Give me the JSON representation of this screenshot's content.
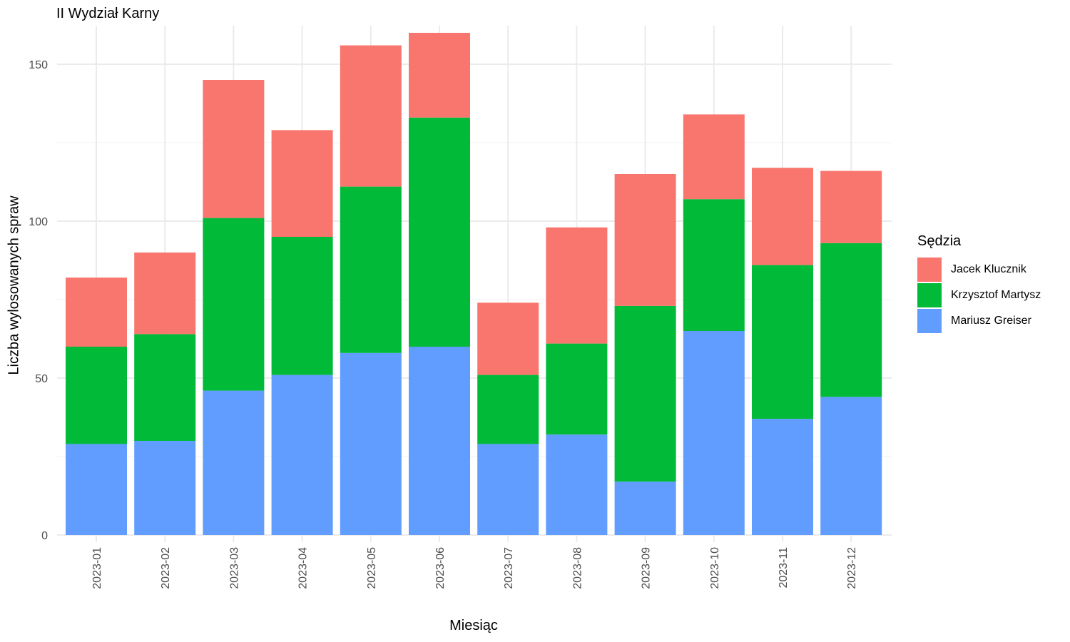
{
  "chart_data": {
    "type": "bar",
    "stacked": true,
    "title": "II Wydział Karny",
    "xlabel": "Miesiąc",
    "ylabel": "Liczba wylosowanych spraw",
    "categories": [
      "2023-01",
      "2023-02",
      "2023-03",
      "2023-04",
      "2023-05",
      "2023-06",
      "2023-07",
      "2023-08",
      "2023-09",
      "2023-10",
      "2023-11",
      "2023-12"
    ],
    "y_ticks": [
      0,
      50,
      100,
      150
    ],
    "ylim": [
      0,
      160
    ],
    "grid": true,
    "legend": {
      "title": "Sędzia",
      "position": "right"
    },
    "series": [
      {
        "name": "Mariusz Greiser",
        "color": "#619CFF",
        "values": [
          29,
          30,
          46,
          51,
          58,
          60,
          29,
          32,
          17,
          65,
          37,
          44
        ]
      },
      {
        "name": "Krzysztof Martysz",
        "color": "#00BA38",
        "values": [
          31,
          34,
          55,
          44,
          53,
          73,
          22,
          29,
          56,
          42,
          49,
          49
        ]
      },
      {
        "name": "Jacek Klucznik",
        "color": "#F8766D",
        "values": [
          22,
          26,
          44,
          34,
          45,
          27,
          23,
          37,
          42,
          27,
          31,
          23
        ]
      }
    ]
  }
}
